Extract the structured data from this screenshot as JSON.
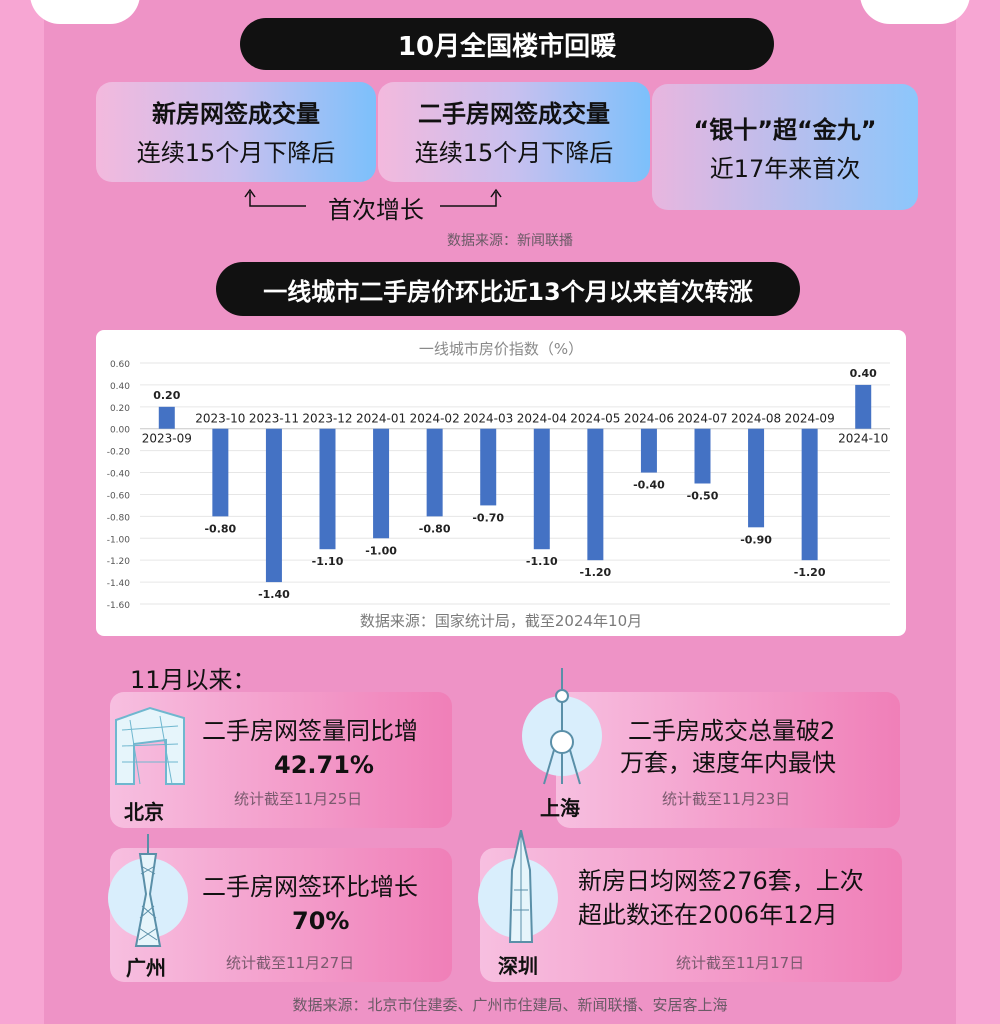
{
  "header": {
    "title": "10月全国楼市回暖"
  },
  "cards": [
    {
      "line1": "新房网签成交量",
      "line2": "连续15个月下降后"
    },
    {
      "line1": "二手房网签成交量",
      "line2": "连续15个月下降后"
    },
    {
      "line1": "“银十”超“金九”",
      "line2": "近17年来首次"
    }
  ],
  "growth_label": "首次增长",
  "source1": "数据来源：新闻联播",
  "section2_title": "一线城市二手房价环比近13个月以来首次转涨",
  "chart_source": "数据来源：国家统计局，截至2024年10月",
  "chart_data": {
    "type": "bar",
    "title": "一线城市房价指数（%）",
    "categories": [
      "2023-09",
      "2023-10",
      "2023-11",
      "2023-12",
      "2024-01",
      "2024-02",
      "2024-03",
      "2024-04",
      "2024-05",
      "2024-06",
      "2024-07",
      "2024-08",
      "2024-09",
      "2024-10"
    ],
    "values": [
      0.2,
      -0.8,
      -1.4,
      -1.1,
      -1.0,
      -0.8,
      -0.7,
      -1.1,
      -1.2,
      -0.4,
      -0.5,
      -0.9,
      -1.2,
      0.4
    ],
    "value_labels": [
      "0.20",
      "-0.80",
      "-1.40",
      "-1.10",
      "-1.00",
      "-0.80",
      "-0.70",
      "-1.10",
      "-1.20",
      "-0.40",
      "-0.50",
      "-0.90",
      "-1.20",
      "0.40"
    ],
    "ylim": [
      -1.6,
      0.6
    ],
    "yticks": [
      "0.60",
      "0.40",
      "0.20",
      "0.00",
      "-0.20",
      "-0.40",
      "-0.60",
      "-0.80",
      "-1.00",
      "-1.20",
      "-1.40",
      "-1.60"
    ],
    "grid": true,
    "bar_color": "#4472c4"
  },
  "since_label": "11月以来：",
  "cities": [
    {
      "name": "北京",
      "main_a": "二手房网签量同比增",
      "main_b": "42.71%",
      "note": "统计截至11月25日"
    },
    {
      "name": "上海",
      "main_a": "二手房成交总量破2",
      "main_b": "万套，速度年内最快",
      "note": "统计截至11月23日"
    },
    {
      "name": "广州",
      "main_a": "二手房网签环比增长",
      "main_b": "70%",
      "note": "统计截至11月27日"
    },
    {
      "name": "深圳",
      "main_a": "新房日均网签276套，上次",
      "main_b": "超此数还在2006年12月",
      "note": "统计截至11月17日"
    }
  ],
  "footer_source": "数据来源：北京市住建委、广州市住建局、新闻联播、安居客上海"
}
